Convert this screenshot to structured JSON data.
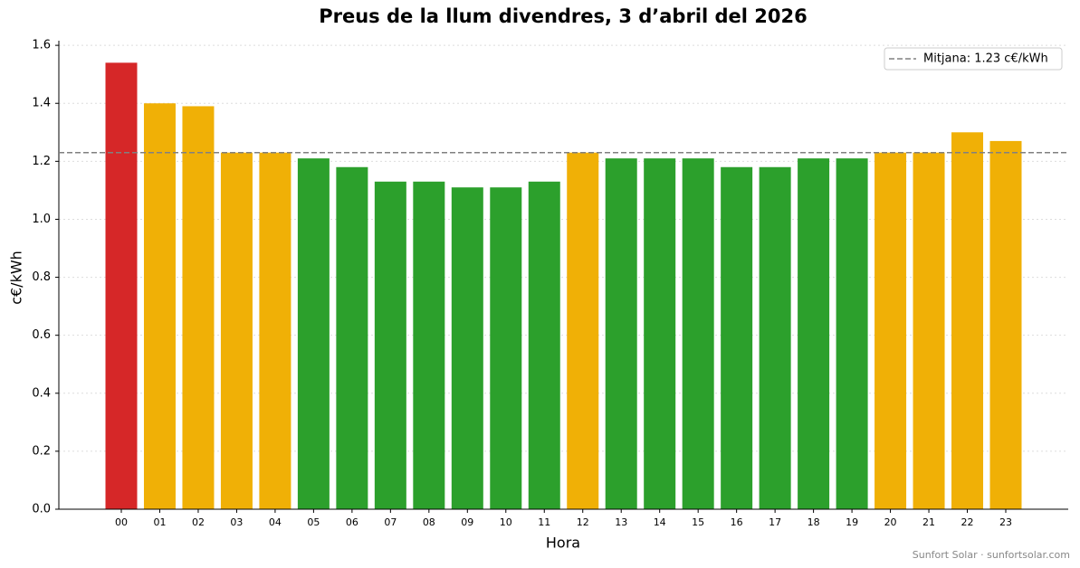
{
  "chart_data": {
    "type": "bar",
    "title": "Preus de la llum divendres, 3 d’abril del 2026",
    "x_label": "Hora",
    "y_label": "c€/kWh",
    "categories": [
      "00",
      "01",
      "02",
      "03",
      "04",
      "05",
      "06",
      "07",
      "08",
      "09",
      "10",
      "11",
      "12",
      "13",
      "14",
      "15",
      "16",
      "17",
      "18",
      "19",
      "20",
      "21",
      "22",
      "23"
    ],
    "values": [
      1.54,
      1.4,
      1.39,
      1.23,
      1.23,
      1.21,
      1.18,
      1.13,
      1.13,
      1.11,
      1.11,
      1.13,
      1.23,
      1.21,
      1.21,
      1.21,
      1.18,
      1.18,
      1.21,
      1.21,
      1.23,
      1.23,
      1.3,
      1.27
    ],
    "colors": [
      "#d62728",
      "#f0b006",
      "#f0b006",
      "#f0b006",
      "#f0b006",
      "#2ca02c",
      "#2ca02c",
      "#2ca02c",
      "#2ca02c",
      "#2ca02c",
      "#2ca02c",
      "#2ca02c",
      "#f0b006",
      "#2ca02c",
      "#2ca02c",
      "#2ca02c",
      "#2ca02c",
      "#2ca02c",
      "#2ca02c",
      "#2ca02c",
      "#f0b006",
      "#f0b006",
      "#f0b006",
      "#f0b006"
    ],
    "mean": 1.23,
    "mean_label": "Mitjana: 1.23 c€/kWh",
    "mean_color": "#808080",
    "ylim": [
      0,
      1.616
    ],
    "yticks": [
      {
        "value": 0,
        "label": "0.0"
      },
      {
        "value": 0.2,
        "label": "0.2"
      },
      {
        "value": 0.4,
        "label": "0.4"
      },
      {
        "value": 0.6,
        "label": "0.6"
      },
      {
        "value": 0.8,
        "label": "0.8"
      },
      {
        "value": 1,
        "label": "1.0"
      },
      {
        "value": 1.2,
        "label": "1.2"
      },
      {
        "value": 1.4,
        "label": "1.4"
      },
      {
        "value": 1.6,
        "label": "1.6"
      }
    ],
    "grid": true,
    "legend_position": "upper right",
    "footer": "Sunfort Solar · sunfortsolar.com"
  }
}
